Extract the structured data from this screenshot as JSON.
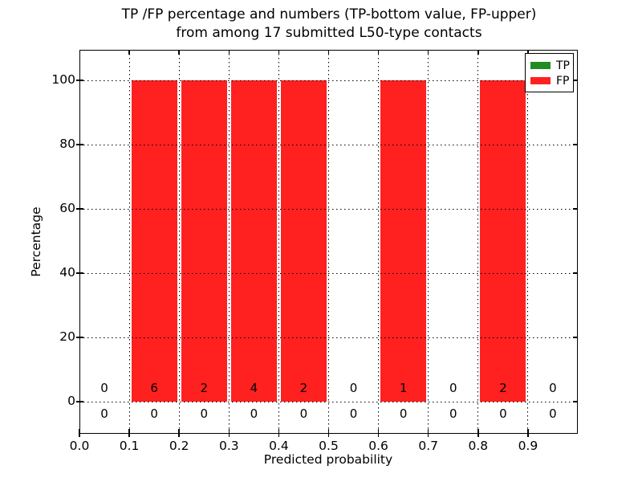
{
  "title": {
    "line1": "TP /FP percentage and numbers (TP-bottom value, FP-upper)",
    "line2": "from among 17 submitted L50-type contacts"
  },
  "axes": {
    "xlabel": "Predicted probability",
    "ylabel": "Percentage"
  },
  "legend": {
    "entries": [
      {
        "label": "TP",
        "color": "#228b22"
      },
      {
        "label": "FP",
        "color": "#ff2020"
      }
    ]
  },
  "chart_data": {
    "type": "bar",
    "title": "TP /FP percentage and numbers (TP-bottom value, FP-upper) from among 17 submitted L50-type contacts",
    "xlabel": "Predicted probability",
    "ylabel": "Percentage",
    "xlim": [
      0.0,
      1.0
    ],
    "ylim": [
      -10,
      109.5
    ],
    "grid": true,
    "legend_position": "upper right",
    "bin_width": 0.1,
    "bin_starts": [
      0.0,
      0.1,
      0.2,
      0.3,
      0.4,
      0.5,
      0.6,
      0.7,
      0.8,
      0.9
    ],
    "x_tick_labels": [
      "0.0",
      "0.1",
      "0.2",
      "0.3",
      "0.4",
      "0.5",
      "0.6",
      "0.7",
      "0.8",
      "0.9"
    ],
    "y_tick_values": [
      0,
      20,
      40,
      60,
      80,
      100
    ],
    "y_tick_labels": [
      "0",
      "20",
      "40",
      "60",
      "80",
      "100"
    ],
    "series": [
      {
        "name": "TP",
        "color": "#228b22",
        "percent": [
          0,
          0,
          0,
          0,
          0,
          0,
          0,
          0,
          0,
          0
        ],
        "counts": [
          0,
          0,
          0,
          0,
          0,
          0,
          0,
          0,
          0,
          0
        ],
        "counts_row": "bottom"
      },
      {
        "name": "FP",
        "color": "#ff2020",
        "percent": [
          0,
          100,
          100,
          100,
          100,
          0,
          100,
          0,
          100,
          0
        ],
        "counts": [
          0,
          6,
          2,
          4,
          2,
          0,
          1,
          0,
          2,
          0
        ],
        "counts_row": "upper"
      }
    ]
  }
}
